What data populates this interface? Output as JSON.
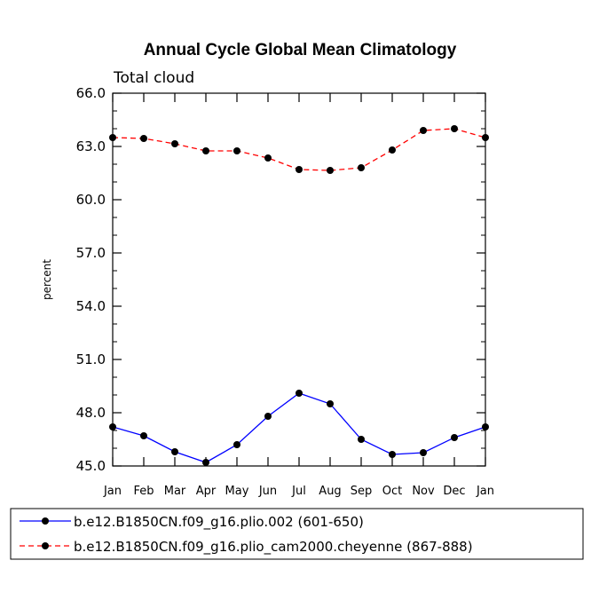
{
  "chart_data": {
    "type": "line",
    "title": "Annual Cycle Global Mean Climatology",
    "subtitle": "Total cloud",
    "xlabel": "",
    "ylabel": "percent",
    "categories": [
      "Jan",
      "Feb",
      "Mar",
      "Apr",
      "May",
      "Jun",
      "Jul",
      "Aug",
      "Sep",
      "Oct",
      "Nov",
      "Dec",
      "Jan"
    ],
    "ylim": [
      45.0,
      66.0
    ],
    "yticks": [
      45.0,
      48.0,
      51.0,
      54.0,
      57.0,
      60.0,
      63.0,
      66.0
    ],
    "ytick_labels": [
      "45.0",
      "48.0",
      "51.0",
      "54.0",
      "57.0",
      "60.0",
      "63.0",
      "66.0"
    ],
    "grid": false,
    "legend_position": "bottom",
    "series": [
      {
        "name": "b.e12.B1850CN.f09_g16.plio.002 (601-650)",
        "color": "#0000ff",
        "dash": "solid",
        "values": [
          47.2,
          46.7,
          45.8,
          45.2,
          46.2,
          47.8,
          49.1,
          48.5,
          46.5,
          45.65,
          45.75,
          46.6,
          47.2
        ]
      },
      {
        "name": "b.e12.B1850CN.f09_g16.plio_cam2000.cheyenne (867-888)",
        "color": "#ff0000",
        "dash": "dashed",
        "values": [
          63.5,
          63.45,
          63.15,
          62.75,
          62.75,
          62.35,
          61.7,
          61.65,
          61.8,
          62.8,
          63.9,
          64.0,
          63.5
        ]
      }
    ]
  }
}
